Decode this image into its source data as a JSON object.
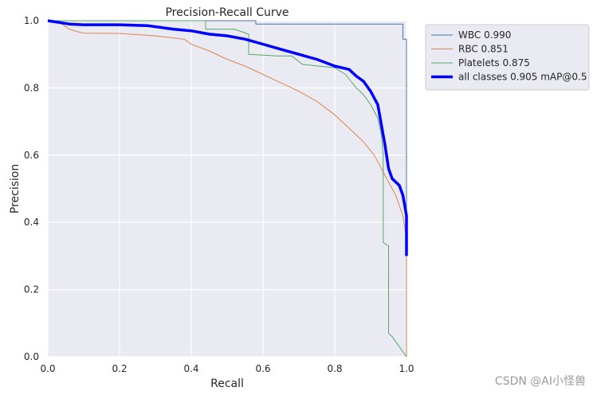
{
  "chart_data": {
    "type": "line",
    "title": "Precision-Recall Curve",
    "xlabel": "Recall",
    "ylabel": "Precision",
    "xlim": [
      0,
      1
    ],
    "ylim": [
      0,
      1
    ],
    "x_ticks": [
      "0.0",
      "0.2",
      "0.4",
      "0.6",
      "0.8",
      "1.0"
    ],
    "y_ticks": [
      "0.0",
      "0.2",
      "0.4",
      "0.6",
      "0.8",
      "1.0"
    ],
    "grid": true,
    "legend_position": "outside-top-right",
    "series": [
      {
        "name": "WBC 0.990",
        "color": "#4c72b0",
        "line_width": "thin",
        "points": [
          [
            0,
            1.0
          ],
          [
            0.58,
            1.0
          ],
          [
            0.58,
            0.99
          ],
          [
            0.99,
            0.99
          ],
          [
            0.99,
            0.945
          ],
          [
            1.0,
            0.945
          ],
          [
            1.0,
            0.0
          ]
        ]
      },
      {
        "name": "RBC 0.851",
        "color": "#dd8452",
        "line_width": "thin",
        "points": [
          [
            0,
            1.0
          ],
          [
            0.04,
            0.99
          ],
          [
            0.06,
            0.975
          ],
          [
            0.08,
            0.968
          ],
          [
            0.1,
            0.963
          ],
          [
            0.2,
            0.962
          ],
          [
            0.3,
            0.955
          ],
          [
            0.38,
            0.945
          ],
          [
            0.4,
            0.93
          ],
          [
            0.45,
            0.91
          ],
          [
            0.5,
            0.885
          ],
          [
            0.55,
            0.865
          ],
          [
            0.6,
            0.84
          ],
          [
            0.65,
            0.815
          ],
          [
            0.7,
            0.79
          ],
          [
            0.75,
            0.76
          ],
          [
            0.8,
            0.72
          ],
          [
            0.85,
            0.67
          ],
          [
            0.88,
            0.64
          ],
          [
            0.91,
            0.6
          ],
          [
            0.93,
            0.56
          ],
          [
            0.95,
            0.52
          ],
          [
            0.97,
            0.48
          ],
          [
            0.99,
            0.42
          ],
          [
            1.0,
            0.35
          ],
          [
            1.0,
            0.0
          ]
        ]
      },
      {
        "name": "Platelets 0.875",
        "color": "#55a868",
        "line_width": "thin",
        "points": [
          [
            0,
            1.0
          ],
          [
            0.44,
            1.0
          ],
          [
            0.44,
            0.975
          ],
          [
            0.52,
            0.975
          ],
          [
            0.56,
            0.96
          ],
          [
            0.56,
            0.9
          ],
          [
            0.64,
            0.895
          ],
          [
            0.68,
            0.895
          ],
          [
            0.71,
            0.87
          ],
          [
            0.8,
            0.86
          ],
          [
            0.83,
            0.84
          ],
          [
            0.86,
            0.8
          ],
          [
            0.88,
            0.78
          ],
          [
            0.9,
            0.75
          ],
          [
            0.92,
            0.71
          ],
          [
            0.93,
            0.66
          ],
          [
            0.935,
            0.6
          ],
          [
            0.935,
            0.34
          ],
          [
            0.95,
            0.33
          ],
          [
            0.95,
            0.07
          ],
          [
            0.96,
            0.06
          ],
          [
            1.0,
            0.0
          ]
        ]
      },
      {
        "name": "all classes 0.905 mAP@0.5",
        "color": "#0000ff",
        "line_width": "thick",
        "points": [
          [
            0,
            1.0
          ],
          [
            0.06,
            0.99
          ],
          [
            0.1,
            0.988
          ],
          [
            0.2,
            0.988
          ],
          [
            0.28,
            0.985
          ],
          [
            0.35,
            0.975
          ],
          [
            0.4,
            0.97
          ],
          [
            0.45,
            0.96
          ],
          [
            0.5,
            0.955
          ],
          [
            0.55,
            0.945
          ],
          [
            0.6,
            0.93
          ],
          [
            0.65,
            0.915
          ],
          [
            0.7,
            0.9
          ],
          [
            0.75,
            0.885
          ],
          [
            0.8,
            0.865
          ],
          [
            0.84,
            0.855
          ],
          [
            0.86,
            0.835
          ],
          [
            0.88,
            0.82
          ],
          [
            0.9,
            0.79
          ],
          [
            0.92,
            0.75
          ],
          [
            0.93,
            0.69
          ],
          [
            0.94,
            0.63
          ],
          [
            0.95,
            0.56
          ],
          [
            0.96,
            0.53
          ],
          [
            0.98,
            0.51
          ],
          [
            0.99,
            0.48
          ],
          [
            1.0,
            0.42
          ],
          [
            1.0,
            0.3
          ]
        ]
      }
    ]
  },
  "watermark": "CSDN @AI小怪兽"
}
